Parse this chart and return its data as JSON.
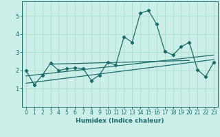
{
  "title": "",
  "xlabel": "Humidex (Indice chaleur)",
  "ylabel": "",
  "bg_color": "#cceee8",
  "grid_color": "#aaddcc",
  "line_color": "#1a6b6b",
  "x_data": [
    0,
    1,
    2,
    3,
    4,
    5,
    6,
    7,
    8,
    9,
    10,
    11,
    12,
    13,
    14,
    15,
    16,
    17,
    18,
    19,
    20,
    21,
    22,
    23
  ],
  "y_data": [
    2.0,
    1.2,
    1.75,
    2.4,
    2.0,
    2.1,
    2.15,
    2.1,
    1.45,
    1.75,
    2.45,
    2.3,
    3.85,
    3.55,
    5.15,
    5.3,
    4.55,
    3.05,
    2.85,
    3.3,
    3.55,
    2.05,
    1.65,
    2.45
  ],
  "xlim": [
    -0.5,
    23.5
  ],
  "ylim": [
    0,
    5.8
  ],
  "yticks": [
    1,
    2,
    3,
    4,
    5
  ],
  "xticks": [
    0,
    1,
    2,
    3,
    4,
    5,
    6,
    7,
    8,
    9,
    10,
    11,
    12,
    13,
    14,
    15,
    16,
    17,
    18,
    19,
    20,
    21,
    22,
    23
  ],
  "trend1_x": [
    0,
    23
  ],
  "trend1_y": [
    1.3,
    2.6
  ],
  "trend2_x": [
    3,
    20
  ],
  "trend2_y": [
    2.35,
    2.55
  ],
  "trend3_x": [
    0,
    23
  ],
  "trend3_y": [
    1.7,
    2.85
  ]
}
